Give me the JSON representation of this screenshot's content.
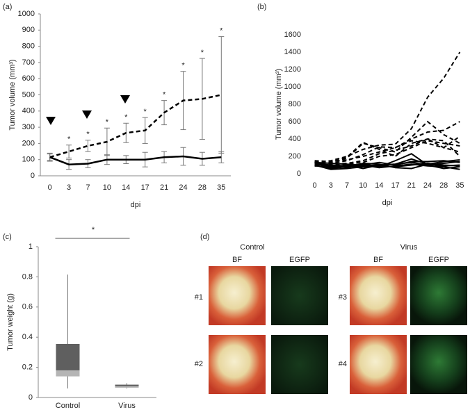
{
  "chart_data": [
    {
      "type": "line",
      "panel": "(a)",
      "ylabel": "Tumor volume (mm³)",
      "xlabel": "dpi",
      "categories": [
        "0",
        "3",
        "7",
        "10",
        "14",
        "17",
        "21",
        "24",
        "28",
        "35"
      ],
      "ylim": [
        0,
        1000
      ],
      "yticks": [
        0,
        100,
        200,
        300,
        400,
        500,
        600,
        700,
        800,
        900,
        1000
      ],
      "series": [
        {
          "color": "#000000",
          "dashed": true,
          "values": [
            115,
            150,
            185,
            210,
            265,
            280,
            390,
            465,
            475,
            500
          ],
          "errors": [
            20,
            40,
            35,
            85,
            60,
            80,
            75,
            180,
            250,
            360
          ]
        },
        {
          "color": "#000000",
          "dashed": false,
          "values": [
            115,
            70,
            75,
            100,
            100,
            100,
            115,
            120,
            105,
            115
          ],
          "errors": [
            25,
            30,
            25,
            30,
            25,
            45,
            35,
            55,
            40,
            35
          ]
        }
      ],
      "annotations": [
        null,
        "*",
        "*",
        "*",
        "*",
        "*",
        "*",
        "*",
        "*",
        "*"
      ]
    },
    {
      "type": "line",
      "panel": "(b)",
      "ylabel": "Tumor volume (mm³)",
      "xlabel": "dpi",
      "categories": [
        "0",
        "3",
        "7",
        "10",
        "14",
        "17",
        "21",
        "24",
        "28",
        "35"
      ],
      "ylim": [
        0,
        1600
      ],
      "yticks": [
        0,
        200,
        400,
        600,
        800,
        1000,
        1200,
        1400,
        1600
      ],
      "series": [
        {
          "color": "#000000",
          "dashed": true,
          "values": [
            130,
            150,
            200,
            280,
            330,
            340,
            520,
            880,
            1100,
            1400
          ]
        },
        {
          "color": "#000000",
          "dashed": true,
          "values": [
            120,
            130,
            180,
            350,
            300,
            250,
            420,
            600,
            450,
            350
          ]
        },
        {
          "color": "#000000",
          "dashed": true,
          "values": [
            140,
            120,
            150,
            220,
            310,
            300,
            400,
            480,
            500,
            600
          ]
        },
        {
          "color": "#000000",
          "dashed": true,
          "values": [
            110,
            130,
            190,
            360,
            280,
            200,
            350,
            400,
            380,
            200
          ]
        },
        {
          "color": "#000000",
          "dashed": true,
          "values": [
            100,
            110,
            120,
            150,
            230,
            270,
            320,
            400,
            300,
            250
          ]
        },
        {
          "color": "#000000",
          "dashed": true,
          "values": [
            150,
            140,
            160,
            200,
            250,
            300,
            380,
            350,
            300,
            430
          ]
        },
        {
          "color": "#000000",
          "dashed": true,
          "values": [
            90,
            100,
            110,
            130,
            200,
            220,
            300,
            380,
            350,
            320
          ]
        },
        {
          "color": "#000000",
          "dashed": false,
          "values": [
            130,
            60,
            80,
            90,
            100,
            110,
            170,
            110,
            140,
            160
          ]
        },
        {
          "color": "#000000",
          "dashed": false,
          "values": [
            120,
            100,
            90,
            110,
            80,
            150,
            230,
            100,
            120,
            140
          ]
        },
        {
          "color": "#000000",
          "dashed": false,
          "values": [
            100,
            50,
            60,
            80,
            90,
            80,
            100,
            120,
            100,
            90
          ]
        },
        {
          "color": "#000000",
          "dashed": false,
          "values": [
            110,
            90,
            70,
            120,
            110,
            70,
            60,
            110,
            90,
            100
          ]
        },
        {
          "color": "#000000",
          "dashed": false,
          "values": [
            140,
            70,
            100,
            60,
            100,
            110,
            130,
            100,
            60,
            80
          ]
        },
        {
          "color": "#000000",
          "dashed": false,
          "values": [
            90,
            80,
            90,
            100,
            70,
            90,
            110,
            90,
            80,
            50
          ]
        },
        {
          "color": "#000000",
          "dashed": false,
          "values": [
            130,
            120,
            110,
            100,
            130,
            100,
            140,
            140,
            150,
            130
          ]
        }
      ]
    },
    {
      "type": "box",
      "panel": "(c)",
      "ylabel": "Tumor weight (g)",
      "categories": [
        "Control",
        "Virus"
      ],
      "ylim": [
        0,
        1
      ],
      "yticks": [
        0,
        0.2,
        0.4,
        0.6,
        0.8,
        1
      ],
      "min": [
        0.06,
        0.06
      ],
      "q1": [
        0.14,
        0.065
      ],
      "median": [
        0.18,
        0.075
      ],
      "q3": [
        0.355,
        0.085
      ],
      "max": [
        0.815,
        0.095
      ],
      "upper_color": "#5f5f5f",
      "lower_color": "#b5b5b5",
      "significance": "*"
    }
  ],
  "figure_d": {
    "panel": "(d)",
    "groups": [
      "Control",
      "Virus"
    ],
    "channels": [
      "BF",
      "EGFP",
      "BF",
      "EGFP"
    ],
    "samples": [
      "#1",
      "#2",
      "#3",
      "#4"
    ]
  }
}
